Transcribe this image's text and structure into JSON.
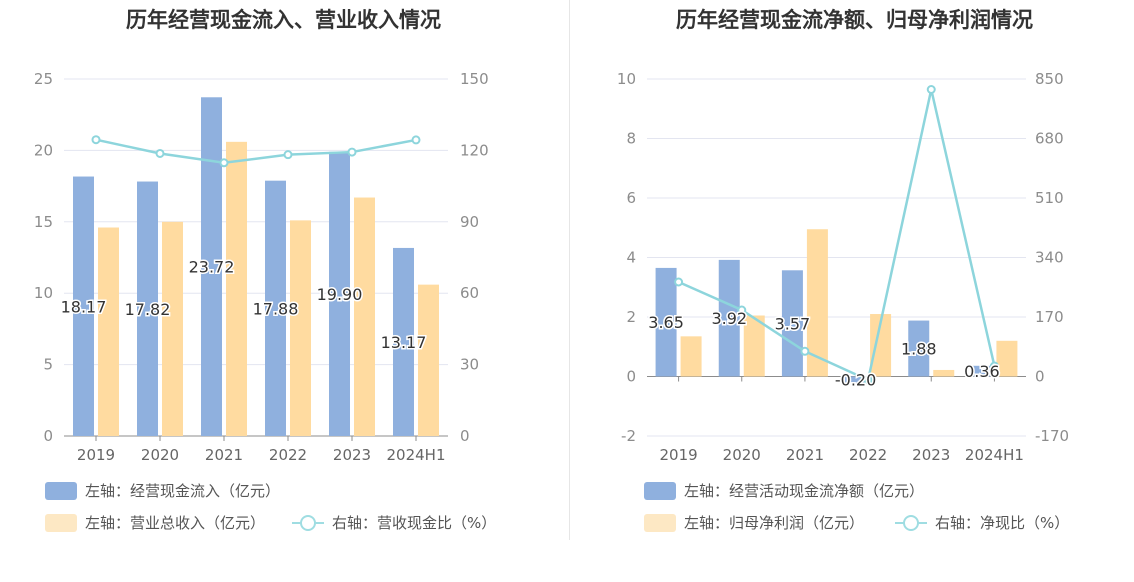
{
  "colors": {
    "bar_primary": "#8fb0de",
    "bar_secondary": "#ffdba0",
    "legend_secondary": "#fde8c4",
    "line": "#8dd5dc",
    "grid": "#e3e5f0",
    "axis": "#8c8c8c"
  },
  "chart_data": [
    {
      "type": "bar",
      "title": "历年经营现金流入、营业收入情况",
      "categories": [
        "2019",
        "2020",
        "2021",
        "2022",
        "2023",
        "2024H1"
      ],
      "series": [
        {
          "name": "左轴：经营现金流入（亿元）",
          "axis": "left",
          "kind": "bar",
          "values": [
            18.17,
            17.82,
            23.72,
            17.88,
            19.9,
            13.17
          ],
          "labels": [
            "18.17",
            "17.82",
            "23.72",
            "17.88",
            "19.90",
            "13.17"
          ]
        },
        {
          "name": "左轴：营业总收入（亿元）",
          "axis": "left",
          "kind": "bar",
          "values": [
            14.6,
            15.0,
            20.6,
            15.1,
            16.7,
            10.6
          ]
        },
        {
          "name": "右轴：营收现金比（%）",
          "axis": "right",
          "kind": "line",
          "values": [
            124.5,
            118.7,
            114.8,
            118.2,
            119.3,
            124.4
          ]
        }
      ],
      "y_left": {
        "min": 0,
        "max": 25,
        "ticks": [
          "0",
          "5",
          "10",
          "15",
          "20",
          "25"
        ]
      },
      "y_right": {
        "min": 0,
        "max": 150,
        "ticks": [
          "0",
          "30",
          "60",
          "90",
          "120",
          "150"
        ]
      },
      "legend": [
        {
          "label": "左轴：经营现金流入（亿元）",
          "kind": "bar-primary"
        },
        {
          "label": "左轴：营业总收入（亿元）",
          "kind": "bar-secondary"
        },
        {
          "label": "右轴：营收现金比（%）",
          "kind": "line"
        }
      ]
    },
    {
      "type": "bar",
      "title": "历年经营现金流净额、归母净利润情况",
      "categories": [
        "2019",
        "2020",
        "2021",
        "2022",
        "2023",
        "2024H1"
      ],
      "series": [
        {
          "name": "左轴：经营活动现金流净额（亿元）",
          "axis": "left",
          "kind": "bar",
          "values": [
            3.65,
            3.92,
            3.57,
            -0.2,
            1.88,
            0.36
          ],
          "labels": [
            "3.65",
            "3.92",
            "3.57",
            "-0.20",
            "1.88",
            "0.36"
          ]
        },
        {
          "name": "左轴：归母净利润（亿元）",
          "axis": "left",
          "kind": "bar",
          "values": [
            1.35,
            2.05,
            4.95,
            2.1,
            0.22,
            1.2
          ]
        },
        {
          "name": "右轴：净现比（%）",
          "axis": "right",
          "kind": "line",
          "values": [
            270,
            190,
            72,
            -10,
            820,
            30
          ]
        }
      ],
      "y_left": {
        "min": -2,
        "max": 10,
        "ticks": [
          "-2",
          "0",
          "2",
          "4",
          "6",
          "8",
          "10"
        ]
      },
      "y_right": {
        "min": -170,
        "max": 850,
        "ticks": [
          "-170",
          "0",
          "170",
          "340",
          "510",
          "680",
          "850"
        ]
      },
      "legend": [
        {
          "label": "左轴：经营活动现金流净额（亿元）",
          "kind": "bar-primary"
        },
        {
          "label": "左轴：归母净利润（亿元）",
          "kind": "bar-secondary"
        },
        {
          "label": "右轴：净现比（%）",
          "kind": "line"
        }
      ]
    }
  ]
}
